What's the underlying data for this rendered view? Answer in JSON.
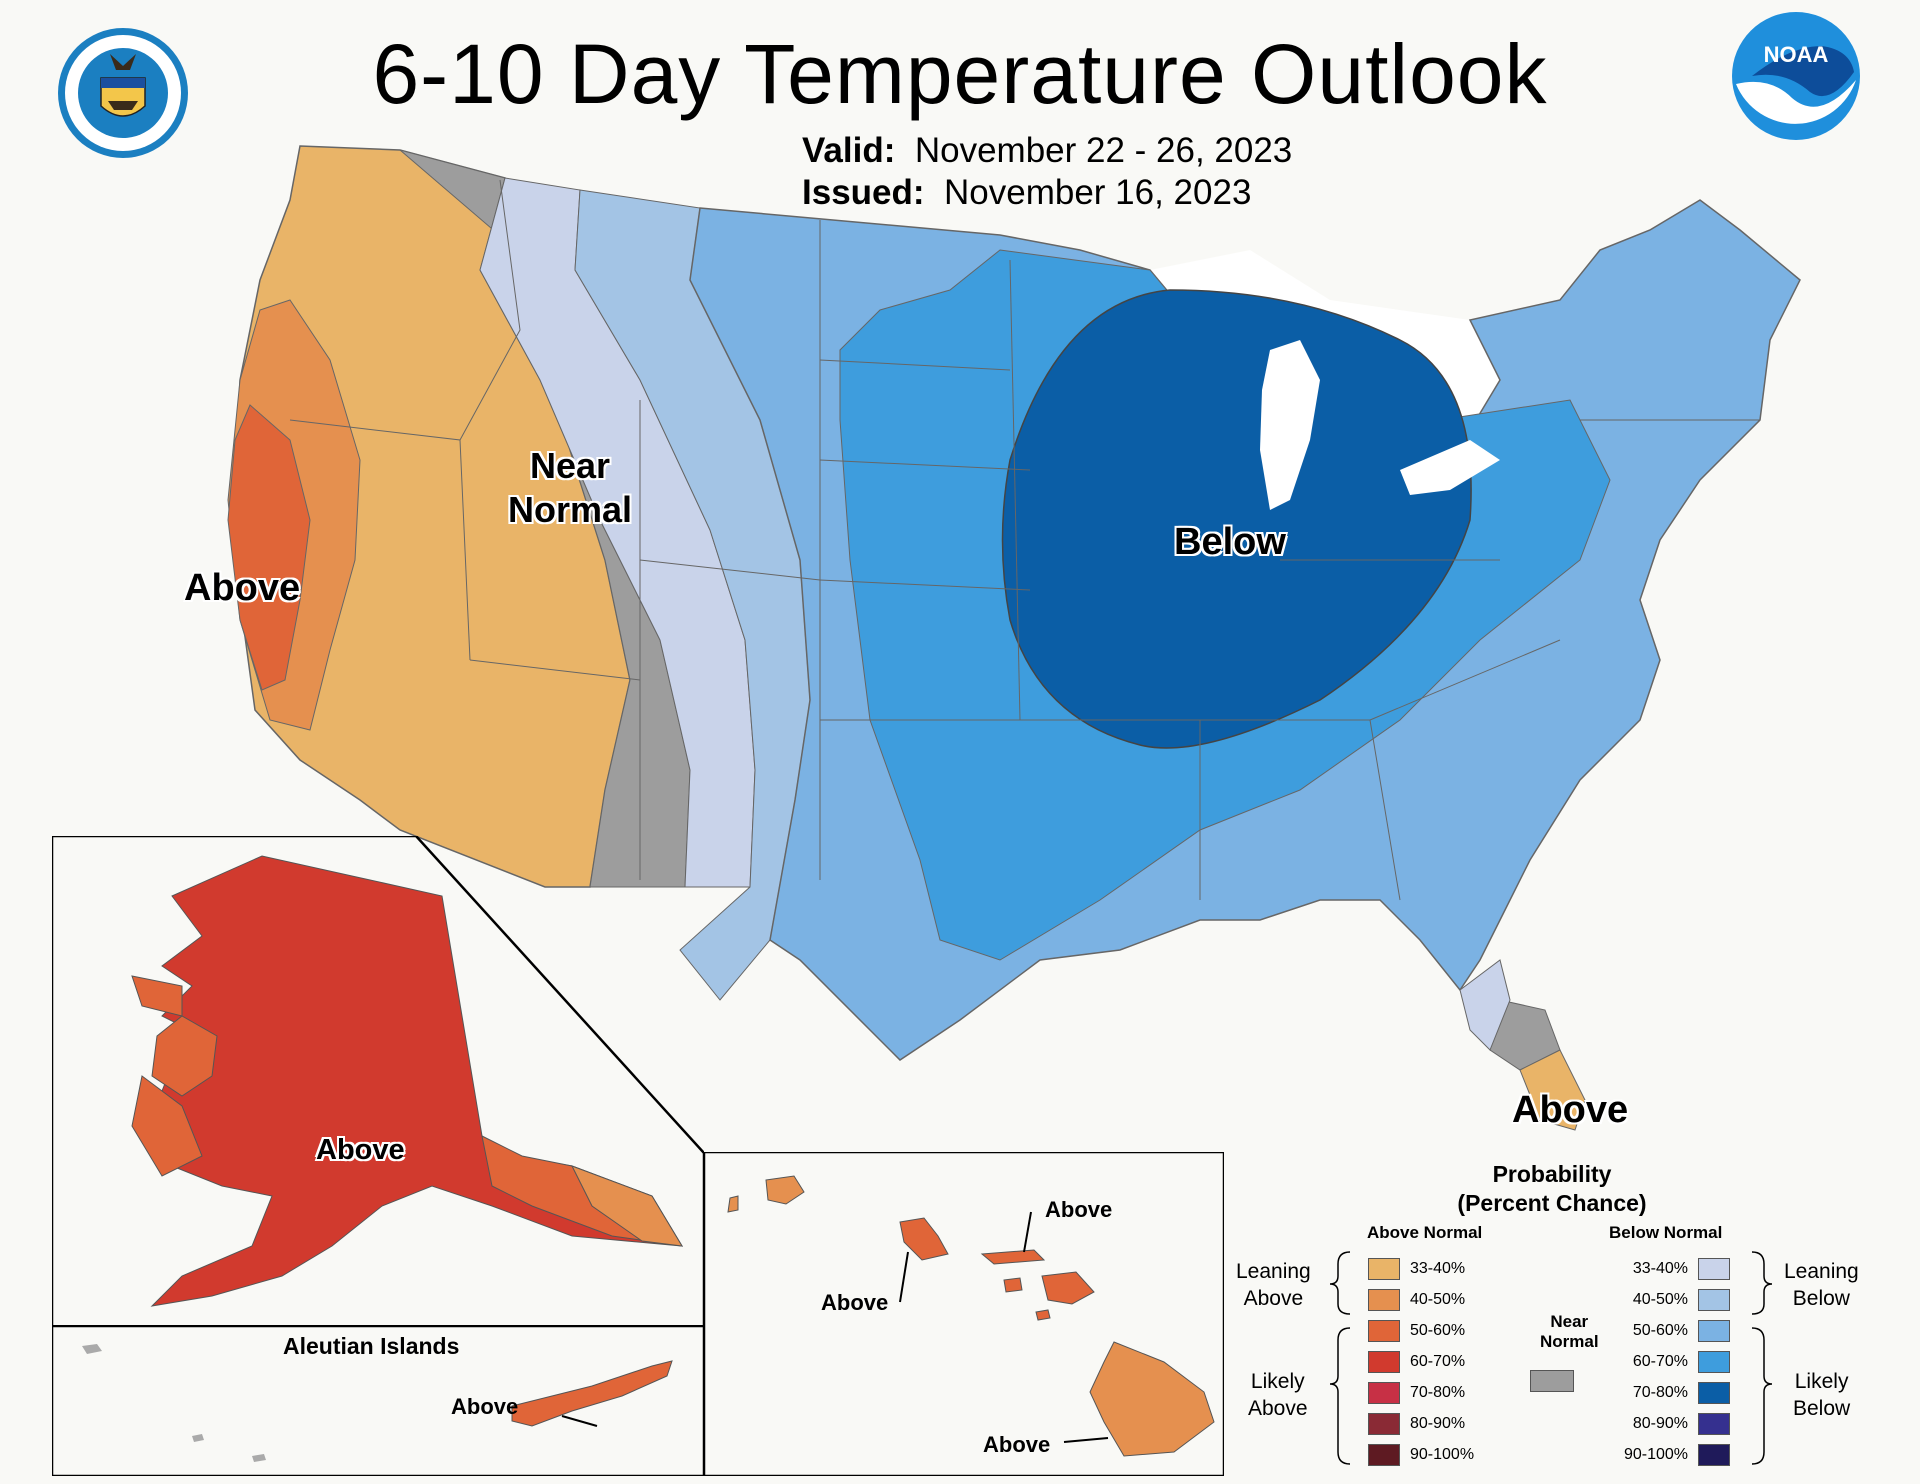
{
  "title": "6-10 Day Temperature Outlook",
  "valid_label": "Valid:",
  "valid_dates": "November 22 - 26, 2023",
  "issued_label": "Issued:",
  "issued_date": "November 16, 2023",
  "logos": {
    "left": "department-of-commerce-seal",
    "right": "noaa-logo",
    "noaa_text": "NOAA"
  },
  "map_labels": {
    "near_normal": "Near\nNormal",
    "above_west": "Above",
    "below": "Below",
    "above_florida": "Above",
    "above_alaska": "Above",
    "above_aleutian": "Above",
    "above_hawaii_1": "Above",
    "above_hawaii_2": "Above",
    "above_hawaii_3": "Above"
  },
  "aleutian_title": "Aleutian Islands",
  "legend": {
    "title": "Probability\n(Percent Chance)",
    "above_head": "Above Normal",
    "below_head": "Below Normal",
    "near_label": "Near\nNormal",
    "leaning_above": "Leaning\nAbove",
    "likely_above": "Likely\nAbove",
    "leaning_below": "Leaning\nBelow",
    "likely_below": "Likely\nBelow",
    "above": [
      {
        "range": "33-40%",
        "color": "#e9b468"
      },
      {
        "range": "40-50%",
        "color": "#e5904f"
      },
      {
        "range": "50-60%",
        "color": "#e06538"
      },
      {
        "range": "60-70%",
        "color": "#d13a2e"
      },
      {
        "range": "70-80%",
        "color": "#c73045"
      },
      {
        "range": "80-90%",
        "color": "#8a2a35"
      },
      {
        "range": "90-100%",
        "color": "#5e1a22"
      }
    ],
    "below": [
      {
        "range": "33-40%",
        "color": "#c9d3ea"
      },
      {
        "range": "40-50%",
        "color": "#a3c4e5"
      },
      {
        "range": "50-60%",
        "color": "#7bb2e3"
      },
      {
        "range": "60-70%",
        "color": "#3e9ddd"
      },
      {
        "range": "70-80%",
        "color": "#0b5ea6"
      },
      {
        "range": "80-90%",
        "color": "#35308f"
      },
      {
        "range": "90-100%",
        "color": "#1f1a5a"
      }
    ],
    "near_color": "#9d9d9d"
  }
}
